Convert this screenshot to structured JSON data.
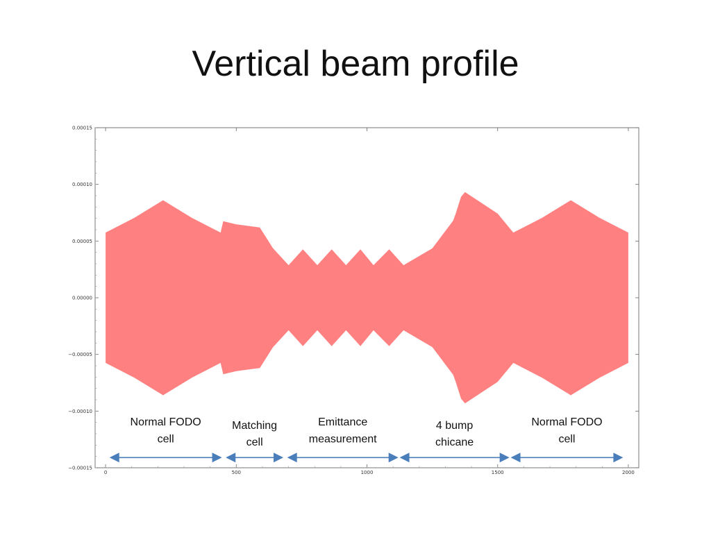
{
  "slide": {
    "title": "Vertical beam profile"
  },
  "chart_data": {
    "type": "area",
    "title": "",
    "xlabel": "",
    "ylabel": "",
    "xlim": [
      -40,
      2040
    ],
    "ylim": [
      -0.00015,
      0.00015
    ],
    "x_ticks": [
      0,
      500,
      1000,
      1500,
      2000
    ],
    "x_tick_labels": [
      "0",
      "500",
      "1000",
      "1500",
      "2000"
    ],
    "y_ticks": [
      0.00015,
      0.0001,
      5e-05,
      0.0,
      -5e-05,
      -0.0001,
      -0.00015
    ],
    "y_tick_labels": [
      "0.00015",
      "0.00010",
      "0.00005",
      "0.00000",
      "−0.00005",
      "−0.00010",
      "−0.00015"
    ],
    "grid": false,
    "series": [
      {
        "color": "#ff8080",
        "symmetric": true,
        "x": [
          0,
          110,
          220,
          330,
          440,
          450,
          500,
          590,
          640,
          700,
          755,
          810,
          865,
          920,
          975,
          1025,
          1085,
          1140,
          1250,
          1330,
          1340,
          1360,
          1375,
          1500,
          1560,
          1670,
          1780,
          1890,
          2000
        ],
        "envelope": [
          5.75e-05,
          7.05e-05,
          8.6e-05,
          7.05e-05,
          5.75e-05,
          6.75e-05,
          6.48e-05,
          6.2e-05,
          4.38e-05,
          2.87e-05,
          4.27e-05,
          2.87e-05,
          4.27e-05,
          2.87e-05,
          4.27e-05,
          2.87e-05,
          4.27e-05,
          2.87e-05,
          4.35e-05,
          6.8e-05,
          7.45e-05,
          8.9e-05,
          9.32e-05,
          7.42e-05,
          5.75e-05,
          7.05e-05,
          8.6e-05,
          7.05e-05,
          5.75e-05
        ]
      }
    ],
    "regions": [
      {
        "label_lines": [
          "Normal FODO",
          "cell"
        ],
        "x_start": 15,
        "x_end": 445
      },
      {
        "label_lines": [
          "Matching",
          "cell"
        ],
        "x_start": 460,
        "x_end": 680
      },
      {
        "label_lines": [
          "Emittance",
          "measurement"
        ],
        "x_start": 695,
        "x_end": 1120
      },
      {
        "label_lines": [
          "4 bump",
          "chicane"
        ],
        "x_start": 1125,
        "x_end": 1545
      },
      {
        "label_lines": [
          "Normal FODO",
          "cell"
        ],
        "x_start": 1550,
        "x_end": 1980
      }
    ],
    "arrow_y": -0.000141,
    "label_y": [
      -0.0001128,
      -0.0001276,
      -0.0001156,
      -0.0001304,
      -0.0001128,
      -0.0001276,
      -0.0001156,
      -0.0001304,
      -0.0001128,
      -0.0001276
    ],
    "arrow_color": "#4a7ebb"
  }
}
